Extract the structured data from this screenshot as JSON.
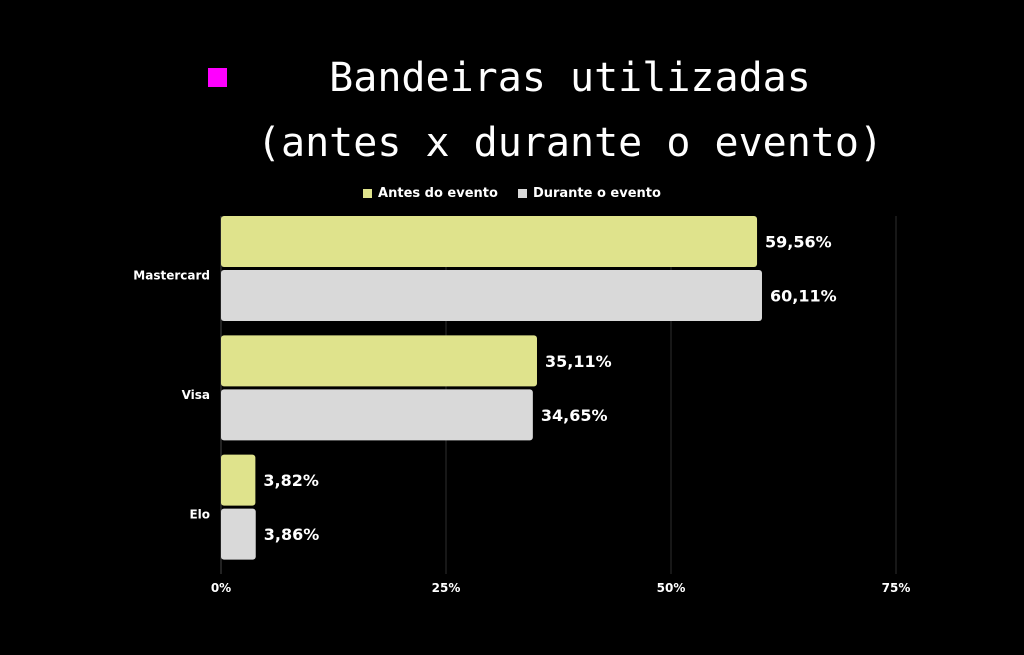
{
  "title": {
    "line1": "Bandeiras utilizadas",
    "line2": "(antes x durante o evento)",
    "marker_color": "#ff00ff"
  },
  "chart_data": {
    "type": "bar",
    "orientation": "horizontal",
    "categories": [
      "Mastercard",
      "Visa",
      "Elo"
    ],
    "series": [
      {
        "name": "Antes do evento",
        "color": "#dfe38c",
        "values": [
          59.56,
          35.11,
          3.82
        ],
        "labels": [
          "59,56%",
          "35,11%",
          "3,82%"
        ]
      },
      {
        "name": "Durante o evento",
        "color": "#d9d9d9",
        "values": [
          60.11,
          34.65,
          3.86
        ],
        "labels": [
          "60,11%",
          "34,65%",
          "3,86%"
        ]
      }
    ],
    "xlim": [
      0,
      75
    ],
    "xticks": [
      0,
      25,
      50,
      75
    ],
    "xtick_labels": [
      "0%",
      "25%",
      "50%",
      "75%"
    ],
    "grid": true,
    "legend_position": "top-center"
  }
}
